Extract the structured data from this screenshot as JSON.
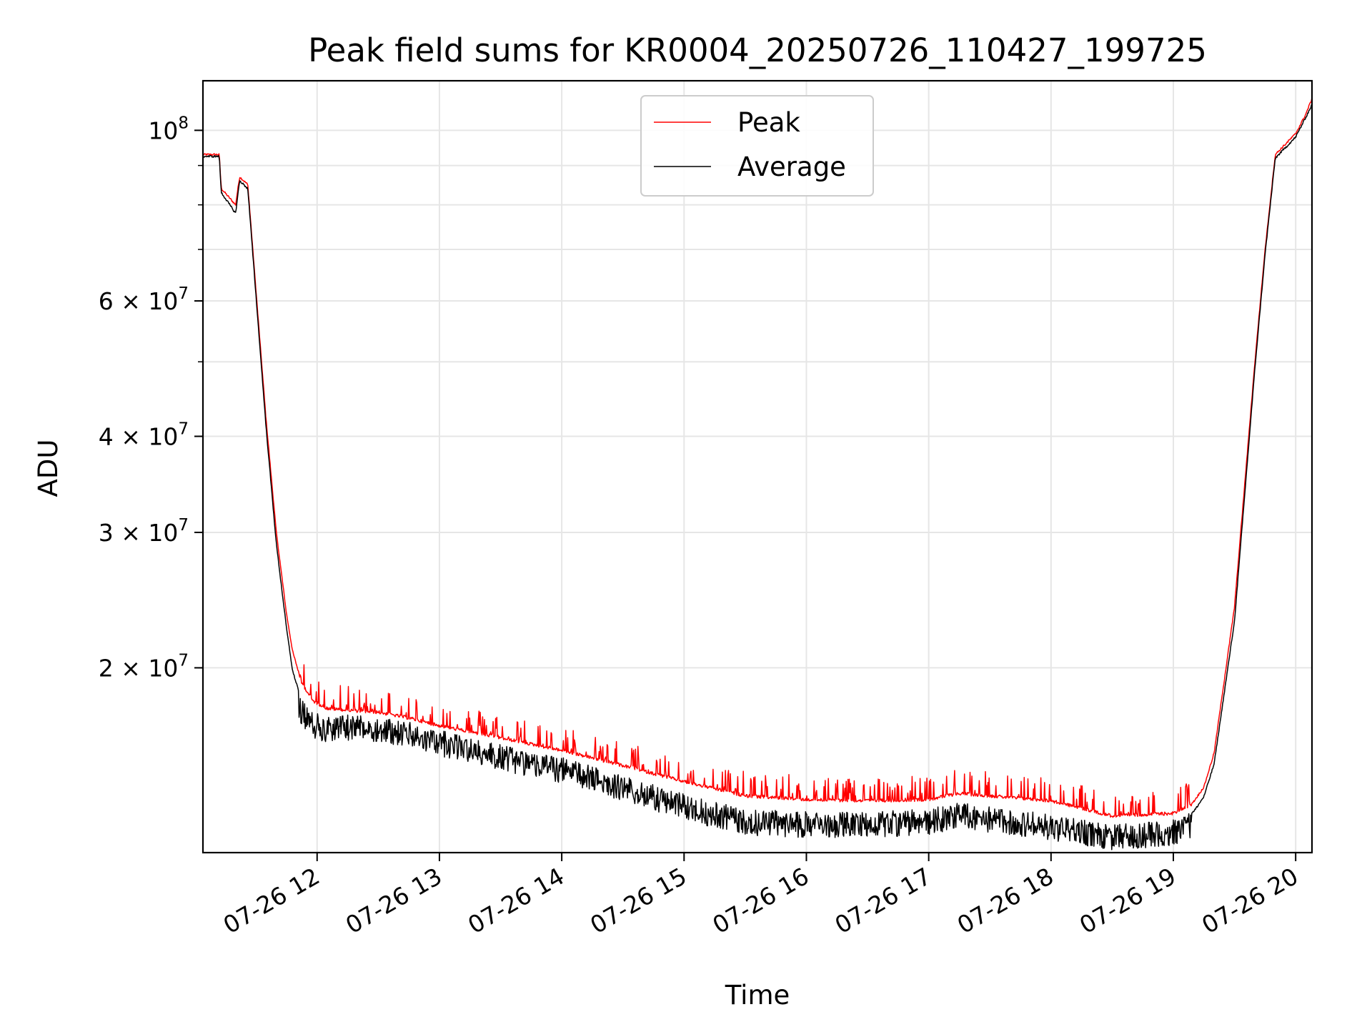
{
  "chart_data": {
    "type": "line",
    "title": "Peak field sums for KR0004_20250726_110427_199725",
    "xlabel": "Time",
    "ylabel": "ADU",
    "y_scale": "log",
    "ylim": [
      11500000,
      116000000
    ],
    "xlim": [
      "07-26 11:04",
      "07-26 20:08"
    ],
    "grid": true,
    "legend_position": "top-center",
    "x_ticks": [
      "07-26 12",
      "07-26 13",
      "07-26 14",
      "07-26 15",
      "07-26 16",
      "07-26 17",
      "07-26 18",
      "07-26 19",
      "07-26 20"
    ],
    "y_ticks": [
      {
        "value": 20000000,
        "label": "2 × 10^7",
        "mantissa": "2",
        "exp": "7"
      },
      {
        "value": 30000000,
        "label": "3 × 10^7",
        "mantissa": "3",
        "exp": "7"
      },
      {
        "value": 40000000,
        "label": "4 × 10^7",
        "mantissa": "4",
        "exp": "7"
      },
      {
        "value": 60000000,
        "label": "6 × 10^7",
        "mantissa": "6",
        "exp": "7"
      },
      {
        "value": 100000000,
        "label": "10^8",
        "mantissa": "",
        "exp": "8"
      }
    ],
    "series": [
      {
        "name": "Peak",
        "color": "#ff0000",
        "x": [
          "07-26 11:04",
          "07-26 11:12",
          "07-26 11:13",
          "07-26 11:20",
          "07-26 11:22",
          "07-26 11:26",
          "07-26 11:30",
          "07-26 11:35",
          "07-26 11:40",
          "07-26 11:45",
          "07-26 11:48",
          "07-26 11:52",
          "07-26 11:58",
          "07-26 12:05",
          "07-26 12:15",
          "07-26 12:30",
          "07-26 12:45",
          "07-26 13:00",
          "07-26 13:30",
          "07-26 14:00",
          "07-26 14:30",
          "07-26 15:00",
          "07-26 15:30",
          "07-26 16:00",
          "07-26 16:30",
          "07-26 17:00",
          "07-26 17:15",
          "07-26 17:30",
          "07-26 18:00",
          "07-26 18:30",
          "07-26 19:00",
          "07-26 19:10",
          "07-26 19:15",
          "07-26 19:20",
          "07-26 19:30",
          "07-26 19:40",
          "07-26 19:45",
          "07-26 19:50",
          "07-26 20:00",
          "07-26 20:05",
          "07-26 20:08"
        ],
        "y": [
          93000000,
          93000000,
          84000000,
          80000000,
          87000000,
          85000000,
          62000000,
          42000000,
          30000000,
          23500000,
          21000000,
          19300000,
          18200000,
          17800000,
          17700000,
          17600000,
          17300000,
          16900000,
          16300000,
          15700000,
          15000000,
          14300000,
          13700000,
          13550000,
          13500000,
          13550000,
          13800000,
          13700000,
          13500000,
          12900000,
          13000000,
          13400000,
          14000000,
          15500000,
          24000000,
          50000000,
          70000000,
          93000000,
          99000000,
          105000000,
          110000000
        ]
      },
      {
        "name": "Average",
        "color": "#000000",
        "x": [
          "07-26 11:04",
          "07-26 11:12",
          "07-26 11:13",
          "07-26 11:20",
          "07-26 11:22",
          "07-26 11:26",
          "07-26 11:30",
          "07-26 11:35",
          "07-26 11:40",
          "07-26 11:45",
          "07-26 11:48",
          "07-26 11:52",
          "07-26 11:58",
          "07-26 12:05",
          "07-26 12:15",
          "07-26 12:30",
          "07-26 12:45",
          "07-26 13:00",
          "07-26 13:30",
          "07-26 14:00",
          "07-26 14:30",
          "07-26 15:00",
          "07-26 15:30",
          "07-26 16:00",
          "07-26 16:30",
          "07-26 17:00",
          "07-26 17:15",
          "07-26 17:30",
          "07-26 18:00",
          "07-26 18:30",
          "07-26 19:00",
          "07-26 19:10",
          "07-26 19:15",
          "07-26 19:20",
          "07-26 19:30",
          "07-26 19:40",
          "07-26 19:45",
          "07-26 19:50",
          "07-26 20:00",
          "07-26 20:05",
          "07-26 20:08"
        ],
        "y": [
          92500000,
          92500000,
          83000000,
          78000000,
          86000000,
          84000000,
          61000000,
          41000000,
          29000000,
          22500000,
          19800000,
          18300000,
          17500000,
          17300000,
          17400000,
          17300000,
          17000000,
          16600000,
          15900000,
          15300000,
          14500000,
          13700000,
          13100000,
          13000000,
          13000000,
          13100000,
          13400000,
          13200000,
          12900000,
          12500000,
          12700000,
          13000000,
          13600000,
          15000000,
          23000000,
          49000000,
          69000000,
          92000000,
          98000000,
          104000000,
          108000000
        ]
      }
    ]
  }
}
